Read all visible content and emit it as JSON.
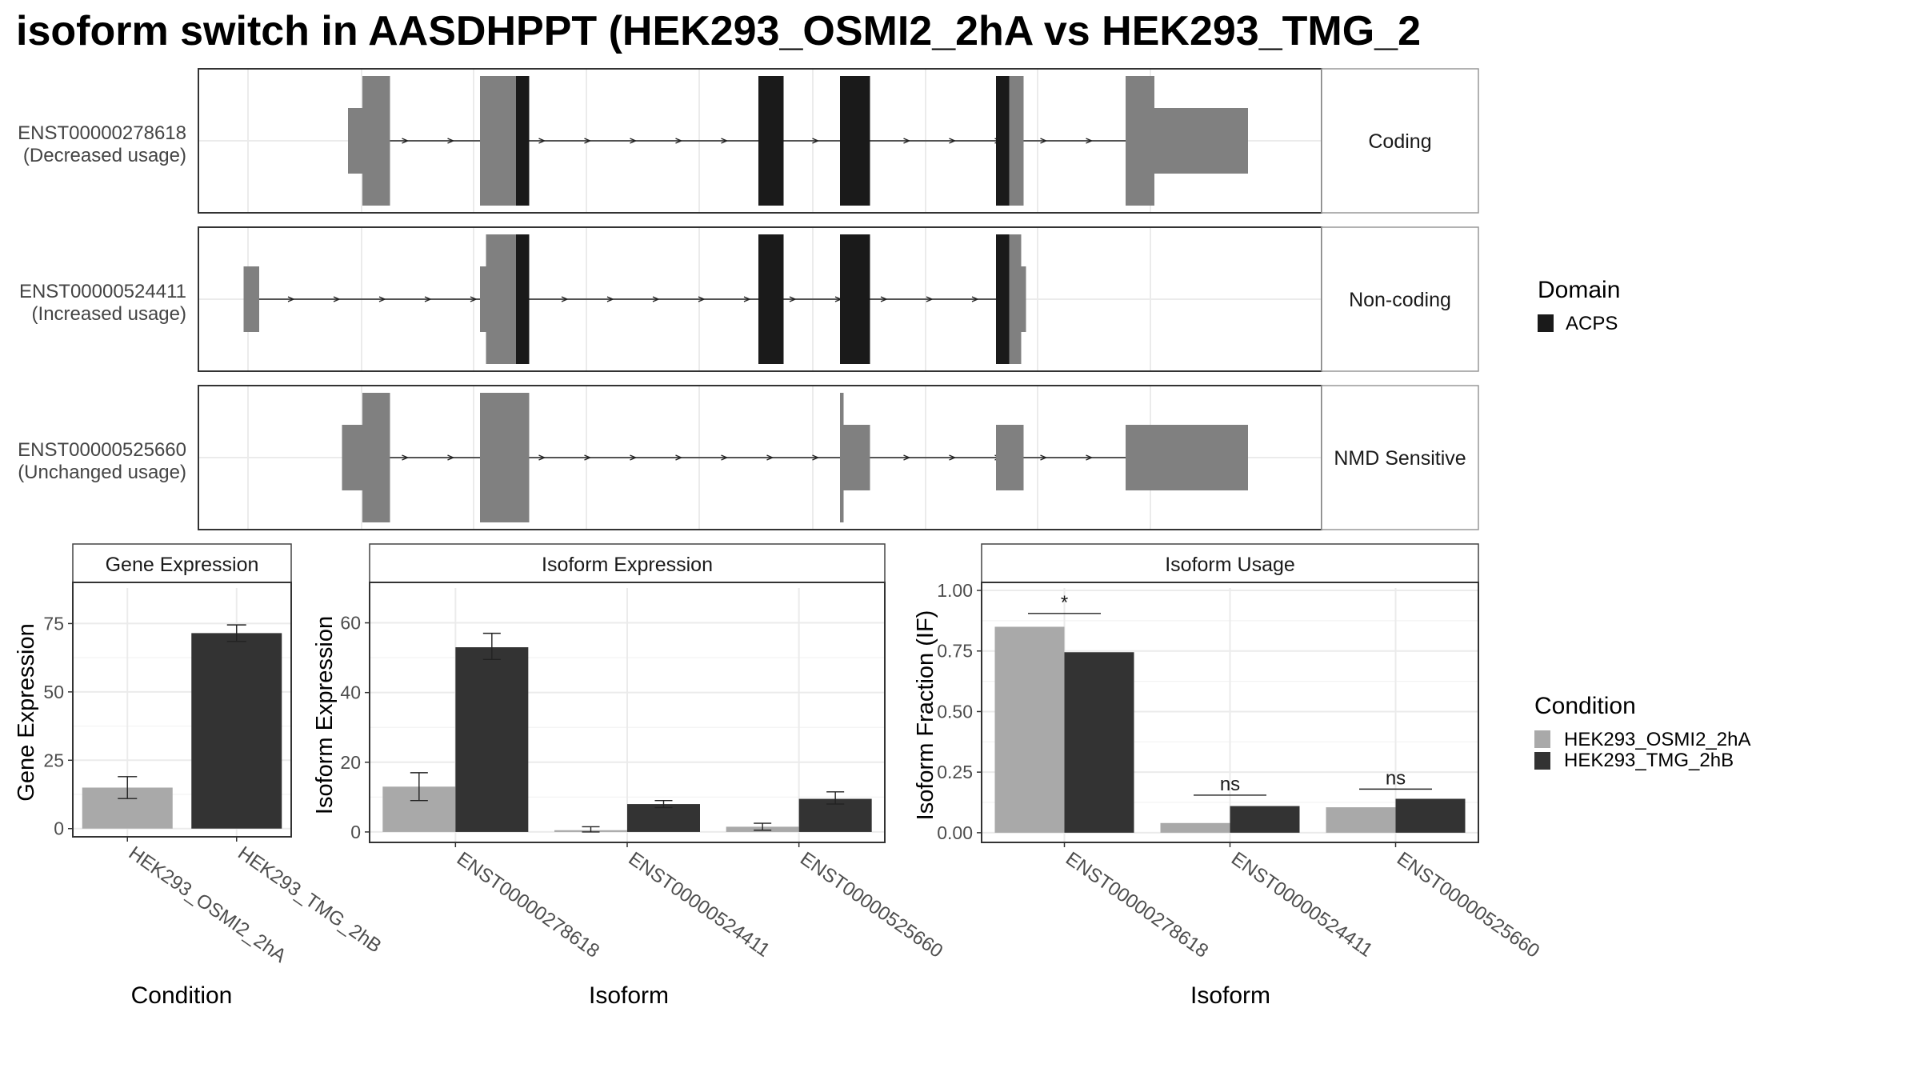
{
  "title": "isoform switch in AASDHPPT (HEK293_OSMI2_2hA vs HEK293_TMG_2",
  "colors": {
    "utr": "#808080",
    "domain": "#1a1a1a",
    "cond_a": "#a9a9a9",
    "cond_b": "#333333",
    "strip_bg": "#ffffff",
    "grid": "#ebebeb"
  },
  "transcripts": [
    {
      "id": "ENST00000278618",
      "usage": "(Decreased usage)",
      "type": "Coding",
      "intron": [
        305,
        1038
      ],
      "exons": [
        {
          "s": 290,
          "e": 302,
          "kind": "utr",
          "h": "mid"
        },
        {
          "s": 302,
          "e": 325,
          "kind": "utr",
          "h": "full"
        },
        {
          "s": 400,
          "e": 430,
          "kind": "utr",
          "h": "full"
        },
        {
          "s": 430,
          "e": 441,
          "kind": "domain",
          "h": "full"
        },
        {
          "s": 632,
          "e": 653,
          "kind": "domain",
          "h": "full"
        },
        {
          "s": 700,
          "e": 725,
          "kind": "domain",
          "h": "full"
        },
        {
          "s": 830,
          "e": 841,
          "kind": "domain",
          "h": "full"
        },
        {
          "s": 841,
          "e": 853,
          "kind": "utr",
          "h": "full"
        },
        {
          "s": 938,
          "e": 962,
          "kind": "utr",
          "h": "full"
        },
        {
          "s": 962,
          "e": 1040,
          "kind": "utr",
          "h": "mid"
        }
      ]
    },
    {
      "id": "ENST00000524411",
      "usage": "(Increased usage)",
      "type": "Non-coding",
      "intron": [
        210,
        845
      ],
      "exons": [
        {
          "s": 203,
          "e": 216,
          "kind": "utr",
          "h": "mid"
        },
        {
          "s": 400,
          "e": 405,
          "kind": "utr",
          "h": "mid"
        },
        {
          "s": 405,
          "e": 430,
          "kind": "utr",
          "h": "full"
        },
        {
          "s": 430,
          "e": 441,
          "kind": "domain",
          "h": "full"
        },
        {
          "s": 632,
          "e": 653,
          "kind": "domain",
          "h": "full"
        },
        {
          "s": 700,
          "e": 725,
          "kind": "domain",
          "h": "full"
        },
        {
          "s": 830,
          "e": 841,
          "kind": "domain",
          "h": "full"
        },
        {
          "s": 841,
          "e": 851,
          "kind": "utr",
          "h": "full"
        },
        {
          "s": 851,
          "e": 855,
          "kind": "utr",
          "h": "mid"
        }
      ]
    },
    {
      "id": "ENST00000525660",
      "usage": "(Unchanged usage)",
      "type": "NMD Sensitive",
      "intron": [
        305,
        1038
      ],
      "exons": [
        {
          "s": 285,
          "e": 302,
          "kind": "utr",
          "h": "mid"
        },
        {
          "s": 302,
          "e": 325,
          "kind": "utr",
          "h": "full"
        },
        {
          "s": 400,
          "e": 441,
          "kind": "utr",
          "h": "full"
        },
        {
          "s": 700,
          "e": 703,
          "kind": "utr",
          "h": "full"
        },
        {
          "s": 703,
          "e": 725,
          "kind": "utr",
          "h": "mid"
        },
        {
          "s": 830,
          "e": 853,
          "kind": "utr",
          "h": "mid"
        },
        {
          "s": 938,
          "e": 1040,
          "kind": "utr",
          "h": "mid"
        }
      ]
    }
  ],
  "legend_domain": {
    "title": "Domain",
    "items": [
      {
        "label": "ACPS",
        "color": "#1a1a1a"
      }
    ]
  },
  "legend_condition": {
    "title": "Condition",
    "items": [
      {
        "label": "HEK293_OSMI2_2hA",
        "color": "#a9a9a9"
      },
      {
        "label": "HEK293_TMG_2hB",
        "color": "#333333"
      }
    ]
  },
  "chart_data": [
    {
      "type": "bar",
      "title": "Gene Expression",
      "xlabel": "Condition",
      "ylabel": "Gene Expression",
      "categories": [
        "HEK293_OSMI2_2hA",
        "HEK293_TMG_2hB"
      ],
      "values": [
        15,
        71.5
      ],
      "error_low": [
        11,
        68.5
      ],
      "error_high": [
        19,
        74.5
      ],
      "ylim": [
        -3,
        88
      ],
      "yticks": [
        0,
        25,
        50,
        75
      ]
    },
    {
      "type": "bar",
      "title": "Isoform Expression",
      "xlabel": "Isoform",
      "ylabel": "Isoform Expression",
      "categories": [
        "ENST00000278618",
        "ENST00000524411",
        "ENST00000525660"
      ],
      "series": [
        {
          "name": "HEK293_OSMI2_2hA",
          "values": [
            13,
            0.5,
            1.5
          ],
          "error_low": [
            9,
            0,
            0.5
          ],
          "error_high": [
            17,
            1.5,
            2.5
          ]
        },
        {
          "name": "HEK293_TMG_2hB",
          "values": [
            53,
            8,
            9.5
          ],
          "error_low": [
            49.5,
            7,
            8
          ],
          "error_high": [
            57,
            9,
            11.5
          ]
        }
      ],
      "ylim": [
        -3,
        70
      ],
      "yticks": [
        0,
        20,
        40,
        60
      ]
    },
    {
      "type": "bar",
      "title": "Isoform Usage",
      "xlabel": "Isoform",
      "ylabel": "Isoform Fraction (IF)",
      "categories": [
        "ENST00000278618",
        "ENST00000524411",
        "ENST00000525660"
      ],
      "series": [
        {
          "name": "HEK293_OSMI2_2hA",
          "values": [
            0.85,
            0.04,
            0.105
          ]
        },
        {
          "name": "HEK293_TMG_2hB",
          "values": [
            0.745,
            0.11,
            0.14
          ]
        }
      ],
      "significance": [
        "*",
        "ns",
        "ns"
      ],
      "significance_level": [
        0.905,
        0.155,
        0.18
      ],
      "ylim": [
        -0.04,
        1.01
      ],
      "yticks": [
        0.0,
        0.25,
        0.5,
        0.75,
        1.0
      ],
      "ytick_labels": [
        "0.00",
        "0.25",
        "0.50",
        "0.75",
        "1.00"
      ]
    }
  ]
}
